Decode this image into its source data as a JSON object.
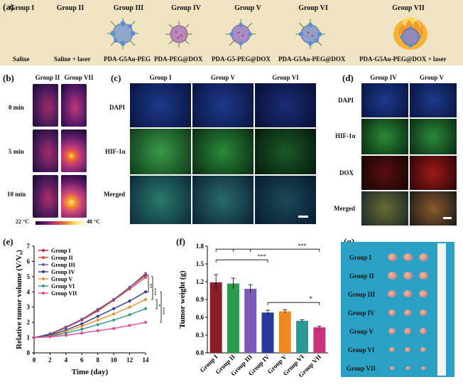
{
  "panel_labels": {
    "a": "(a)",
    "b": "(b)",
    "c": "(c)",
    "d": "(d)",
    "e": "(e)",
    "f": "(f)",
    "g": "(g)"
  },
  "panel_a": {
    "groups": [
      "Group I",
      "Group II",
      "Group III",
      "Group IV",
      "Group V",
      "Group VI",
      "Group VII"
    ],
    "treatments": [
      "Saline",
      "Saline + laser",
      "PDA-G5Au-PEG",
      "PDA-PEG@DOX",
      "PDA-G5-PEG@DOX",
      "PDA-G5Au-PEG@DOX",
      "PDA-G5Au-PEG@DOX + laser"
    ]
  },
  "panel_b": {
    "columns": [
      "Group II",
      "Group VII"
    ],
    "rows": [
      "0 min",
      "5 min",
      "10 min"
    ],
    "scale_min": "22 °C",
    "scale_max": "48 °C"
  },
  "panel_c": {
    "columns": [
      "Group I",
      "Group V",
      "Group VI"
    ],
    "rows": [
      "DAPI",
      "HIF-1α",
      "Merged"
    ]
  },
  "panel_d": {
    "columns": [
      "Group IV",
      "Group V"
    ],
    "rows": [
      "DAPI",
      "HIF-1α",
      "DOX",
      "Merged"
    ]
  },
  "panel_g": {
    "rows": [
      "Group I",
      "Group II",
      "Group III",
      "Group IV",
      "Group V",
      "Group VI",
      "Group VII"
    ]
  },
  "chart_data": [
    {
      "type": "line",
      "panel": "e",
      "ylabel": "Relative tumor volume (V/V₀)",
      "xlabel": "Time (day)",
      "x": [
        0,
        2,
        4,
        6,
        8,
        10,
        12,
        14
      ],
      "xlim": [
        0,
        14
      ],
      "ylim": [
        0,
        7
      ],
      "yticks": [
        0,
        1,
        2,
        3,
        4,
        5,
        6,
        7
      ],
      "xticks": [
        0,
        2,
        4,
        6,
        8,
        10,
        12,
        14
      ],
      "legend": "top-left",
      "series": [
        {
          "name": "Group I",
          "color": "#b0283c",
          "values": [
            1,
            1.2,
            1.7,
            2.2,
            2.8,
            3.5,
            4.3,
            5.1
          ]
        },
        {
          "name": "Group II",
          "color": "#d6473a",
          "values": [
            1,
            1.2,
            1.65,
            2.15,
            2.75,
            3.45,
            4.2,
            4.95
          ]
        },
        {
          "name": "Group III",
          "color": "#6a5aa8",
          "values": [
            1,
            1.25,
            1.7,
            2.2,
            2.85,
            3.5,
            4.3,
            5.2
          ]
        },
        {
          "name": "Group IV",
          "color": "#2a3a8c",
          "values": [
            1,
            1.15,
            1.5,
            1.9,
            2.4,
            2.9,
            3.4,
            4.0
          ]
        },
        {
          "name": "Group V",
          "color": "#f08a2a",
          "values": [
            1,
            1.1,
            1.4,
            1.75,
            2.15,
            2.55,
            3.0,
            3.5
          ]
        },
        {
          "name": "Group VI",
          "color": "#2f9a8c",
          "values": [
            1,
            1.08,
            1.3,
            1.55,
            1.85,
            2.15,
            2.5,
            2.9
          ]
        },
        {
          "name": "Group VII",
          "color": "#e0479a",
          "values": [
            1,
            1.05,
            1.15,
            1.3,
            1.45,
            1.6,
            1.8,
            2.0
          ]
        }
      ],
      "annotations": [
        "**",
        "***",
        "*",
        "***"
      ]
    },
    {
      "type": "bar",
      "panel": "f",
      "ylabel": "Tumor weight (g)",
      "categories": [
        "Group I",
        "Group II",
        "Group III",
        "Group IV",
        "Group V",
        "Group VI",
        "Group VII"
      ],
      "values": [
        1.19,
        1.17,
        1.08,
        0.68,
        0.7,
        0.54,
        0.43
      ],
      "errors": [
        0.13,
        0.09,
        0.07,
        0.04,
        0.03,
        0.02,
        0.02
      ],
      "colors": [
        "#8a1f2c",
        "#2e9a4c",
        "#7a5cb8",
        "#2a3a9c",
        "#f08a1e",
        "#2a9a94",
        "#c8327a"
      ],
      "ylim": [
        0,
        1.8
      ],
      "yticks": [
        0,
        0.3,
        0.6,
        0.9,
        1.2,
        1.5,
        1.8
      ],
      "annotations": [
        "***",
        "***",
        "*"
      ]
    }
  ]
}
